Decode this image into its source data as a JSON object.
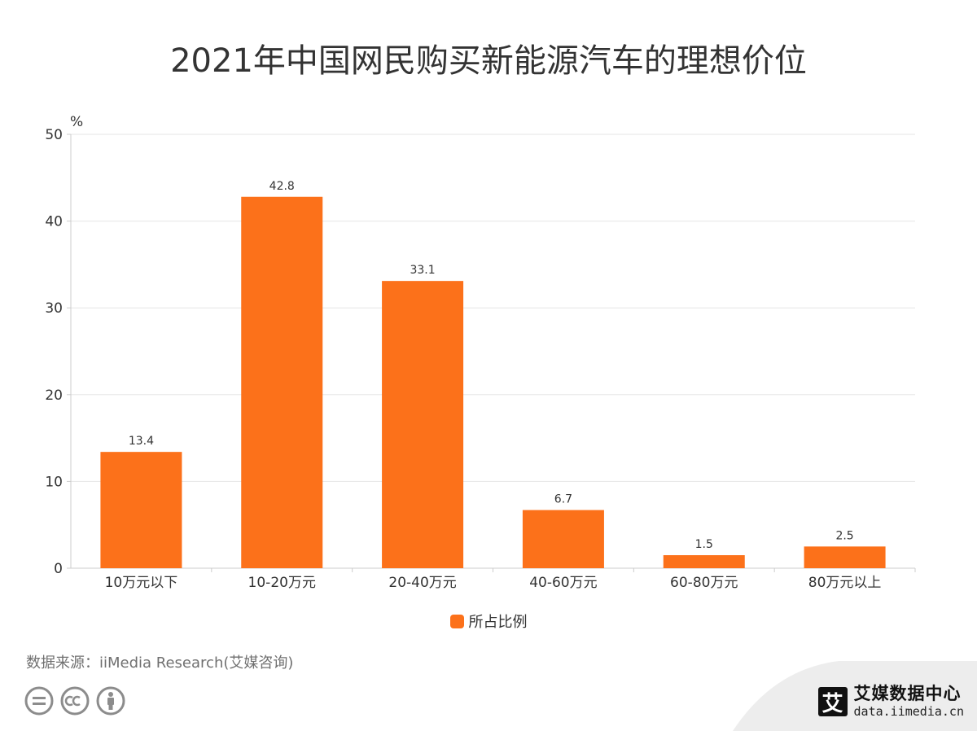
{
  "title": "2021年中国网民购买新能源汽车的理想价位",
  "chart_data": {
    "type": "bar",
    "unit_label": "%",
    "categories": [
      "10万元以下",
      "10-20万元",
      "20-40万元",
      "40-60万元",
      "60-80万元",
      "80万元以上"
    ],
    "series": [
      {
        "name": "所占比例",
        "values": [
          13.4,
          42.8,
          33.1,
          6.7,
          1.5,
          2.5
        ],
        "color": "#FC711A"
      }
    ],
    "ylim": [
      0,
      50
    ],
    "yticks": [
      0,
      10,
      20,
      30,
      40,
      50
    ],
    "grid": true,
    "legend_position": "bottom"
  },
  "legend": {
    "label": "所占比例"
  },
  "source": "数据来源：iiMedia Research(艾媒咨询)",
  "brand": {
    "logo_char": "艾",
    "name": "艾媒数据中心",
    "url": "data.iimedia.cn"
  },
  "license_icons": [
    "equals-icon",
    "cc-icon",
    "person-icon"
  ],
  "colors": {
    "bar": "#FC711A",
    "grid": "#E6E6E6",
    "axis": "#CCCCCC",
    "text": "#333333"
  }
}
